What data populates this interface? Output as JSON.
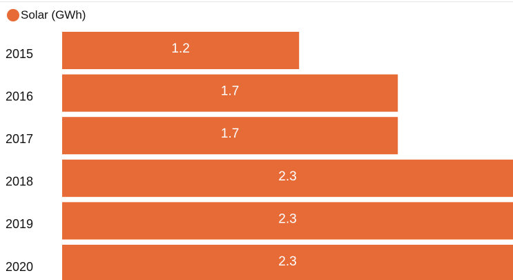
{
  "legend": {
    "label": "Solar (GWh)"
  },
  "colors": {
    "bar": "#E66B37",
    "bar_label": "#FFFFFF",
    "axis_label": "#111111"
  },
  "chart_data": {
    "type": "bar",
    "orientation": "horizontal",
    "categories": [
      "2015",
      "2016",
      "2017",
      "2018",
      "2019",
      "2020"
    ],
    "series": [
      {
        "name": "Solar (GWh)",
        "values": [
          1.2,
          1.7,
          1.7,
          2.3,
          2.3,
          2.3
        ]
      }
    ],
    "data_labels": [
      "1.2",
      "1.7",
      "1.7",
      "2.3",
      "2.3",
      "2.3"
    ],
    "legend_position": "top-left",
    "grid": false
  }
}
